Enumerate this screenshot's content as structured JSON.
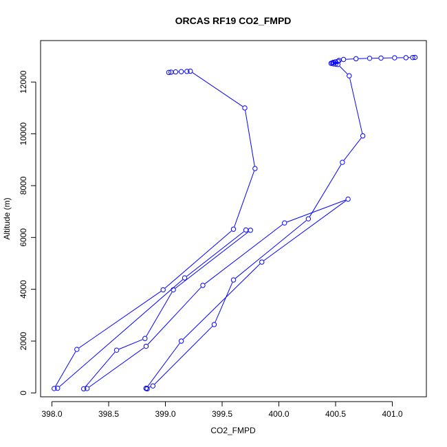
{
  "chart_data": {
    "type": "line",
    "title": "ORCAS RF19 CO2_FMPD",
    "xlabel": "CO2_FMPD",
    "ylabel": "Altitude (m)",
    "xlim": [
      397.9,
      401.3
    ],
    "ylim": [
      -150,
      13600
    ],
    "xticks": [
      398.0,
      398.5,
      399.0,
      399.5,
      400.0,
      400.5,
      401.0
    ],
    "xtick_labels": [
      "398.0",
      "398.5",
      "399.0",
      "399.5",
      "400.0",
      "400.5",
      "401.0"
    ],
    "yticks": [
      0,
      2000,
      4000,
      6000,
      8000,
      10000,
      12000
    ],
    "ytick_labels": [
      "0",
      "2000",
      "4000",
      "6000",
      "8000",
      "10000",
      "12000"
    ],
    "grid": false,
    "legend": "none",
    "colors": {
      "series": "#0000ff",
      "axis": "#000000"
    },
    "series": [
      {
        "marker": "open-circle",
        "points": [
          [
            401.2,
            12950
          ],
          [
            401.18,
            12945
          ],
          [
            401.12,
            12940
          ],
          [
            401.02,
            12935
          ],
          [
            400.9,
            12925
          ],
          [
            400.8,
            12915
          ],
          [
            400.68,
            12900
          ],
          [
            400.57,
            12870
          ],
          [
            400.53,
            12830
          ],
          [
            400.52,
            12800
          ],
          [
            400.5,
            12780
          ],
          [
            400.48,
            12760
          ],
          [
            400.47,
            12740
          ],
          [
            400.46,
            12720
          ],
          [
            400.48,
            12700
          ],
          [
            400.5,
            12690
          ],
          [
            400.52,
            12680
          ],
          [
            400.62,
            12240
          ],
          [
            400.74,
            9920
          ],
          [
            400.56,
            8900
          ],
          [
            400.26,
            6720
          ],
          [
            399.6,
            4360
          ],
          [
            399.43,
            2640
          ],
          [
            398.89,
            270
          ],
          [
            398.83,
            180
          ],
          [
            398.84,
            160
          ],
          [
            398.83,
            170
          ],
          [
            399.14,
            2000
          ],
          [
            399.85,
            5050
          ],
          [
            400.61,
            7480
          ],
          [
            400.05,
            6560
          ],
          [
            399.33,
            4150
          ],
          [
            398.83,
            1800
          ],
          [
            398.31,
            170
          ],
          [
            398.28,
            160
          ],
          [
            398.57,
            1650
          ],
          [
            398.82,
            2100
          ],
          [
            399.07,
            3980
          ],
          [
            399.75,
            6280
          ],
          [
            399.71,
            6290
          ],
          [
            399.17,
            4440
          ],
          [
            398.05,
            180
          ],
          [
            398.02,
            170
          ],
          [
            398.22,
            1680
          ],
          [
            398.98,
            3980
          ],
          [
            399.6,
            6320
          ],
          [
            399.79,
            8660
          ],
          [
            399.7,
            11000
          ],
          [
            399.22,
            12420
          ],
          [
            399.19,
            12410
          ],
          [
            399.14,
            12400
          ],
          [
            399.09,
            12390
          ],
          [
            399.05,
            12380
          ],
          [
            399.03,
            12370
          ]
        ]
      }
    ]
  }
}
